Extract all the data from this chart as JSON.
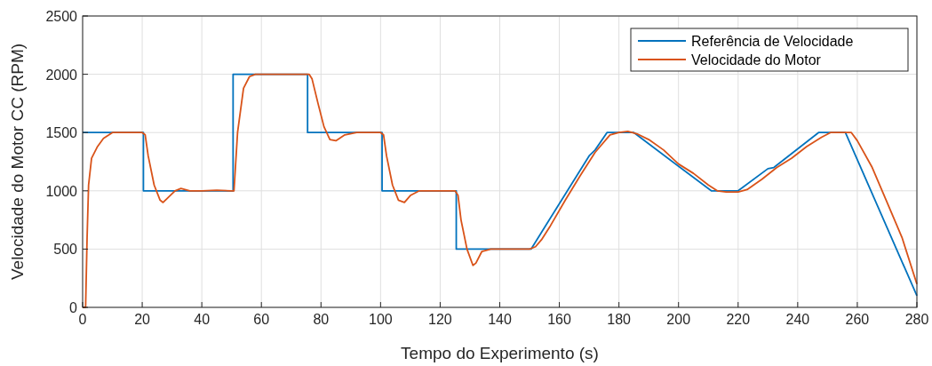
{
  "chart_data": {
    "type": "line",
    "xlabel": "Tempo do Experimento (s)",
    "ylabel": "Velocidade do Motor CC (RPM)",
    "xlim": [
      0,
      280
    ],
    "ylim": [
      0,
      2500
    ],
    "xticks": [
      0,
      20,
      40,
      60,
      80,
      100,
      120,
      140,
      160,
      180,
      200,
      220,
      240,
      260,
      280
    ],
    "yticks": [
      0,
      500,
      1000,
      1500,
      2000,
      2500
    ],
    "grid": true,
    "legend": "top right",
    "line_style": "solid",
    "series": [
      {
        "name": "Referência de Velocidade",
        "color": "#0072bd",
        "x": [
          0,
          20.4,
          20.4,
          50.5,
          50.5,
          75.5,
          75.5,
          100.5,
          100.5,
          125.4,
          125.4,
          150.5,
          170,
          172,
          176,
          185,
          211,
          220,
          230,
          232,
          247,
          256,
          280
        ],
        "values": [
          1500,
          1500,
          1000,
          1000,
          2000,
          2000,
          1500,
          1500,
          1000,
          1000,
          500,
          500,
          1300,
          1350,
          1500,
          1500,
          1000,
          1000,
          1190,
          1200,
          1500,
          1500,
          100
        ]
      },
      {
        "name": "Velocidade do Motor",
        "color": "#d95319",
        "x": [
          0,
          1,
          1.5,
          2,
          3,
          5,
          7,
          10,
          15,
          20,
          21,
          22,
          24,
          26,
          27,
          29,
          31,
          33,
          36,
          40,
          45,
          50,
          50.8,
          52,
          54,
          56,
          58,
          62,
          70,
          76,
          77,
          79,
          81,
          83,
          85,
          88,
          92,
          100,
          101,
          102,
          104,
          106,
          108,
          110,
          113,
          118,
          125,
          126,
          127,
          129,
          131,
          132,
          134,
          137,
          140,
          150,
          152,
          154,
          157,
          162,
          167,
          172,
          177,
          180,
          183,
          186,
          190,
          195,
          200,
          205,
          210,
          213,
          216,
          220,
          223,
          228,
          233,
          238,
          243,
          248,
          251,
          255,
          258,
          260,
          265,
          270,
          275,
          280
        ],
        "values": [
          0,
          0,
          600,
          1050,
          1280,
          1380,
          1450,
          1500,
          1500,
          1500,
          1480,
          1300,
          1050,
          920,
          900,
          950,
          1000,
          1020,
          1000,
          1000,
          1005,
          1000,
          1000,
          1500,
          1880,
          1980,
          2000,
          2000,
          2000,
          2000,
          1960,
          1750,
          1550,
          1440,
          1430,
          1480,
          1500,
          1500,
          1480,
          1300,
          1050,
          920,
          900,
          960,
          1000,
          1000,
          1000,
          960,
          750,
          500,
          360,
          380,
          480,
          500,
          500,
          500,
          520,
          580,
          700,
          920,
          1130,
          1330,
          1480,
          1500,
          1510,
          1490,
          1440,
          1350,
          1230,
          1150,
          1050,
          1000,
          990,
          990,
          1010,
          1100,
          1200,
          1280,
          1380,
          1460,
          1500,
          1500,
          1500,
          1430,
          1200,
          900,
          600,
          200
        ]
      }
    ]
  }
}
